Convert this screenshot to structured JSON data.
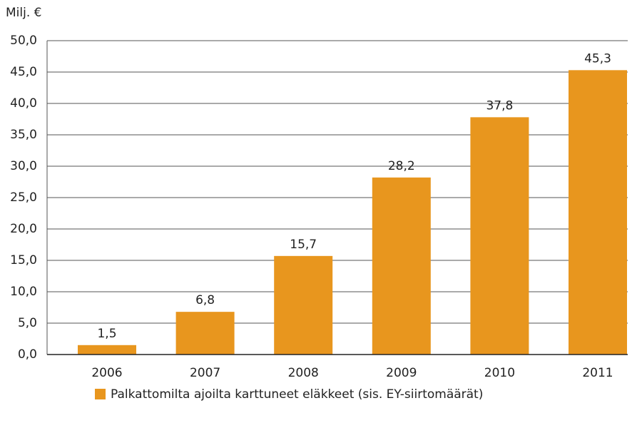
{
  "chart_data": {
    "type": "bar",
    "y_axis_label": "Milj. €",
    "categories": [
      "2006",
      "2007",
      "2008",
      "2009",
      "2010",
      "2011"
    ],
    "series": [
      {
        "name": "Palkattomilta ajoilta karttuneet eläkkeet (sis. EY-siirtomäärät)",
        "color": "#e8961e",
        "values": [
          1.5,
          6.8,
          15.7,
          28.2,
          37.8,
          45.3
        ],
        "value_labels": [
          "1,5",
          "6,8",
          "15,7",
          "28,2",
          "37,8",
          "45,3"
        ]
      }
    ],
    "ylim": [
      0,
      50
    ],
    "yticks": [
      {
        "value": 0,
        "label": "0,0"
      },
      {
        "value": 5,
        "label": "5,0"
      },
      {
        "value": 10,
        "label": "10,0"
      },
      {
        "value": 15,
        "label": "15,0"
      },
      {
        "value": 20,
        "label": "20,0"
      },
      {
        "value": 25,
        "label": "25,0"
      },
      {
        "value": 30,
        "label": "30,0"
      },
      {
        "value": 35,
        "label": "35,0"
      },
      {
        "value": 40,
        "label": "40,0"
      },
      {
        "value": 45,
        "label": "45,0"
      },
      {
        "value": 50,
        "label": "50,0"
      }
    ],
    "grid": true,
    "legend": "bottom"
  }
}
